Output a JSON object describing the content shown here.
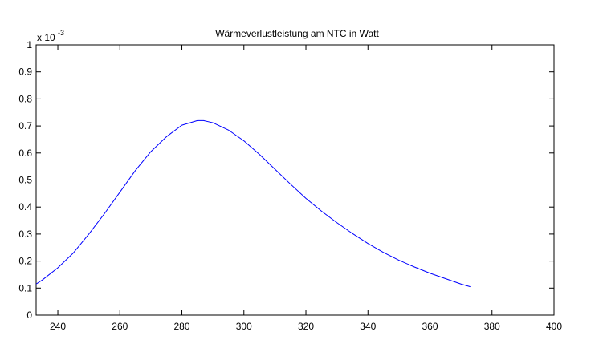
{
  "chart_data": {
    "type": "line",
    "title": "Wärmeverlustleistung am NTC in Watt",
    "xlabel": "",
    "ylabel": "",
    "y_exponent_label": "x 10",
    "y_exponent_power": "-3",
    "xlim": [
      233,
      400
    ],
    "ylim": [
      0,
      1
    ],
    "xticks": [
      "240",
      "260",
      "280",
      "300",
      "320",
      "340",
      "360",
      "380",
      "400"
    ],
    "yticks": [
      "0",
      "0.1",
      "0.2",
      "0.3",
      "0.4",
      "0.5",
      "0.6",
      "0.7",
      "0.8",
      "0.9",
      "1"
    ],
    "grid": false,
    "line_color": "#0000ff",
    "series": [
      {
        "x": [
          233,
          235,
          240,
          245,
          250,
          255,
          260,
          265,
          270,
          275,
          280,
          285,
          287,
          290,
          295,
          300,
          305,
          310,
          315,
          320,
          325,
          330,
          335,
          340,
          345,
          350,
          355,
          360,
          365,
          370,
          373
        ],
        "values": [
          0.115,
          0.13,
          0.175,
          0.23,
          0.3,
          0.375,
          0.455,
          0.535,
          0.605,
          0.66,
          0.703,
          0.72,
          0.72,
          0.712,
          0.685,
          0.645,
          0.595,
          0.54,
          0.485,
          0.432,
          0.385,
          0.342,
          0.302,
          0.265,
          0.232,
          0.203,
          0.178,
          0.155,
          0.135,
          0.115,
          0.105
        ]
      }
    ]
  }
}
